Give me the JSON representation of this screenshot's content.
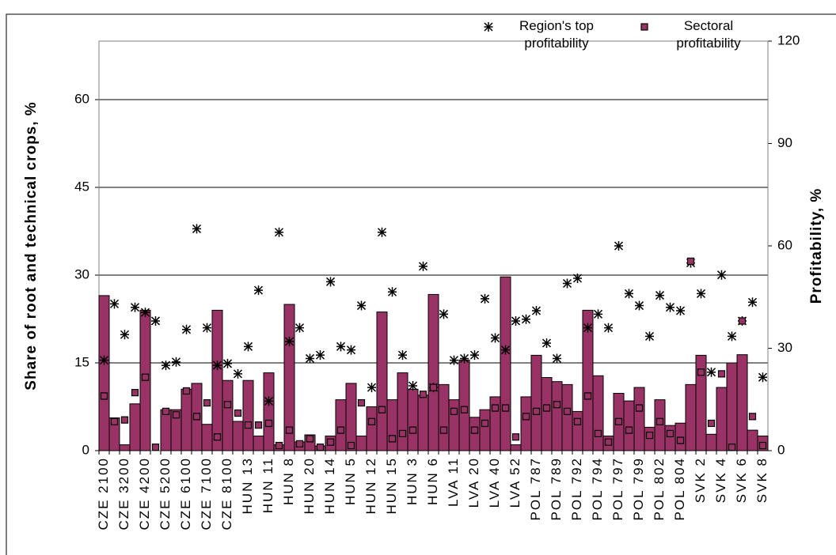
{
  "chart_data": {
    "type": "bar",
    "y_label": "Share of root and technical crops, %",
    "y2_label": "Profitability, %",
    "categories": [
      "CZE 2100",
      null,
      "CZE 3200",
      null,
      "CZE 4200",
      null,
      "CZE 5200",
      null,
      "CZE 6100",
      null,
      "CZE 7100",
      null,
      "CZE 8100",
      null,
      "HUN 13",
      null,
      "HUN 11",
      null,
      "HUN 8",
      null,
      "HUN 20",
      null,
      "HUN 14",
      null,
      "HUN 5",
      null,
      "HUN 12",
      null,
      "HUN 15",
      null,
      "HUN 3",
      null,
      "HUN 6",
      null,
      "LVA 11",
      null,
      "LVA 20",
      null,
      "LVA 40",
      null,
      "LVA 52",
      null,
      "POL 787",
      null,
      "POL 789",
      null,
      "POL 792",
      null,
      "POL 794",
      null,
      "POL 797",
      null,
      "POL 799",
      null,
      "POL 802",
      null,
      "POL 804",
      null,
      "SVK 2",
      null,
      "SVK 4",
      null,
      "SVK 6",
      null,
      "SVK 8"
    ],
    "values": [
      26.5,
      5.6,
      1,
      8,
      24,
      0,
      7,
      7,
      10.5,
      11.5,
      4.5,
      24,
      12,
      5,
      12,
      2.5,
      13.3,
      1,
      25,
      1.5,
      2.7,
      0.8,
      2.5,
      8.7,
      11.5,
      2.5,
      7.5,
      23.7,
      8.7,
      13.3,
      10.5,
      9.5,
      26.7,
      11.3,
      8.7,
      15.5,
      5.7,
      7,
      9.2,
      29.7,
      1,
      9.2,
      16.3,
      12.5,
      11.8,
      11.3,
      6.7,
      24,
      12.8,
      2.5,
      9.8,
      8.5,
      10.8,
      4,
      8.7,
      4.3,
      4.7,
      11.3,
      16.3,
      2.8,
      10.8,
      15,
      16.4,
      3.5,
      2.5
    ],
    "color": "#993366",
    "series": [
      {
        "name": "Region's top profitability",
        "color": "#000000",
        "marker": "star",
        "axis": "y2",
        "values": [
          26.5,
          43,
          34,
          42,
          40.5,
          38,
          25,
          26,
          35.5,
          65,
          36,
          25,
          25.5,
          22.5,
          30.5,
          47,
          14.5,
          64,
          32,
          36,
          27,
          28,
          49.5,
          30.5,
          29.5,
          42.5,
          18.5,
          64,
          46.5,
          28,
          19,
          54,
          18.5,
          40,
          26.5,
          27,
          28,
          44.5,
          33,
          29.5,
          38,
          38.5,
          41,
          31.5,
          27,
          49,
          50.5,
          36,
          40,
          36,
          60,
          46,
          42.5,
          33.5,
          45.5,
          42,
          41,
          55,
          46,
          23,
          51.5,
          33.5,
          38,
          43.5,
          21.5
        ]
      },
      {
        "name": "Sectoral profitability",
        "color": "#993366",
        "marker": "square",
        "axis": "y2",
        "values": [
          16,
          8.5,
          9,
          17,
          21.5,
          1,
          11.5,
          10.5,
          17.5,
          10,
          14,
          4,
          13.5,
          11,
          7.5,
          7.5,
          8,
          1.5,
          6,
          2,
          3.5,
          1,
          2.5,
          6,
          1.5,
          14,
          8.5,
          12,
          3.5,
          5,
          6,
          16.5,
          18.5,
          6,
          11.5,
          12,
          6,
          8,
          12.5,
          12.5,
          4,
          10,
          11.5,
          12.5,
          13.5,
          11.5,
          8.5,
          16,
          5,
          2.5,
          8.5,
          6,
          12.5,
          4.5,
          8.5,
          5,
          3,
          55.5,
          23,
          8,
          22.5,
          1,
          38,
          10,
          1.5
        ]
      }
    ],
    "ylim": [
      0,
      70
    ],
    "yticks": [
      0,
      15,
      30,
      45,
      60
    ],
    "y2lim": [
      0,
      120
    ],
    "y2ticks": [
      0,
      30,
      60,
      90,
      120
    ],
    "grid": true
  }
}
